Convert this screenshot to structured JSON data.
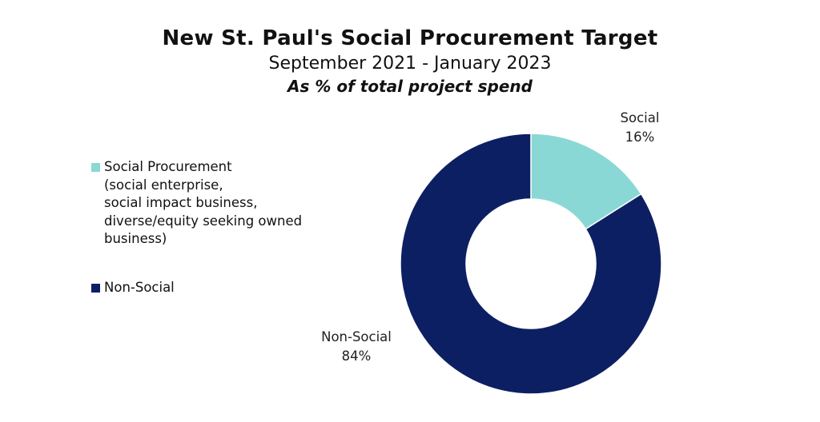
{
  "chart_data": {
    "type": "pie",
    "variant": "donut",
    "title": "New St. Paul's Social Procurement Target",
    "subtitle": "September 2021 - January 2023",
    "subsubtitle": "As % of total project spend",
    "slices": [
      {
        "name": "Social",
        "value": 16,
        "percent_label": "16%",
        "color": "#8ad8d5"
      },
      {
        "name": "Non-Social",
        "value": 84,
        "percent_label": "84%",
        "color": "#0d1f63"
      }
    ],
    "legend": {
      "placement": "left",
      "entries": [
        {
          "lines": [
            "Social Procurement",
            "(social enterprise,",
            "social impact business,",
            "diverse/equity seeking owned",
            "business)"
          ],
          "color": "#8ad8d5"
        },
        {
          "lines": [
            "Non-Social"
          ],
          "color": "#0d1f63"
        }
      ]
    }
  }
}
